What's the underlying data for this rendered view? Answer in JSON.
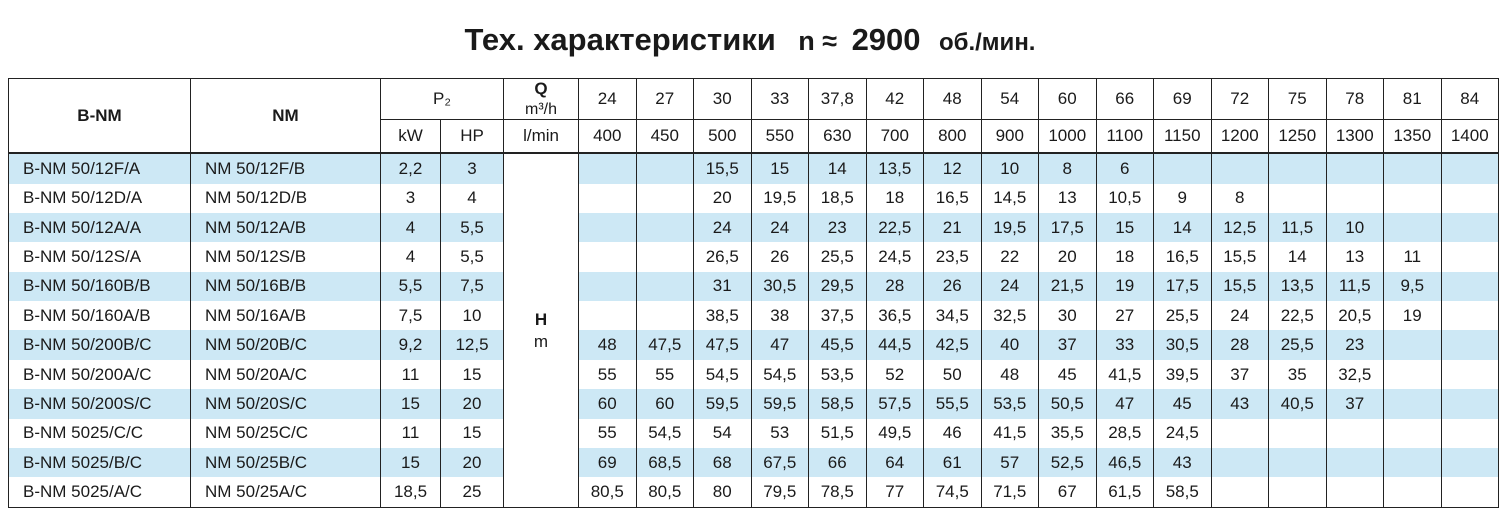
{
  "title": {
    "prefix": "Тех. характеристики",
    "n_part": "n ≈",
    "speed": "2900",
    "unit": "об./мин."
  },
  "header": {
    "col1": "B-NM",
    "col2": "NM",
    "power": "P₂",
    "kw": "kW",
    "hp": "HP",
    "q_label": "Q",
    "q_unit_m3h": "m³/h",
    "q_unit_lmin": "l/min",
    "h_label": "H",
    "h_unit": "m",
    "flow_m3h": [
      "24",
      "27",
      "30",
      "33",
      "37,8",
      "42",
      "48",
      "54",
      "60",
      "66",
      "69",
      "72",
      "75",
      "78",
      "81",
      "84"
    ],
    "flow_lmin": [
      "400",
      "450",
      "500",
      "550",
      "630",
      "700",
      "800",
      "900",
      "1000",
      "1100",
      "1150",
      "1200",
      "1250",
      "1300",
      "1350",
      "1400"
    ]
  },
  "rows": [
    {
      "bnm": "B-NM 50/12F/A",
      "nm": "NM 50/12F/B",
      "kw": "2,2",
      "hp": "3",
      "h": [
        "",
        "",
        "15,5",
        "15",
        "14",
        "13,5",
        "12",
        "10",
        "8",
        "6",
        "",
        "",
        "",
        "",
        "",
        ""
      ]
    },
    {
      "bnm": "B-NM 50/12D/A",
      "nm": "NM 50/12D/B",
      "kw": "3",
      "hp": "4",
      "h": [
        "",
        "",
        "20",
        "19,5",
        "18,5",
        "18",
        "16,5",
        "14,5",
        "13",
        "10,5",
        "9",
        "8",
        "",
        "",
        "",
        ""
      ]
    },
    {
      "bnm": "B-NM 50/12A/A",
      "nm": "NM 50/12A/B",
      "kw": "4",
      "hp": "5,5",
      "h": [
        "",
        "",
        "24",
        "24",
        "23",
        "22,5",
        "21",
        "19,5",
        "17,5",
        "15",
        "14",
        "12,5",
        "11,5",
        "10",
        "",
        ""
      ]
    },
    {
      "bnm": "B-NM 50/12S/A",
      "nm": "NM 50/12S/B",
      "kw": "4",
      "hp": "5,5",
      "h": [
        "",
        "",
        "26,5",
        "26",
        "25,5",
        "24,5",
        "23,5",
        "22",
        "20",
        "18",
        "16,5",
        "15,5",
        "14",
        "13",
        "11",
        ""
      ]
    },
    {
      "bnm": "B-NM 50/160B/B",
      "nm": "NM 50/16B/B",
      "kw": "5,5",
      "hp": "7,5",
      "h": [
        "",
        "",
        "31",
        "30,5",
        "29,5",
        "28",
        "26",
        "24",
        "21,5",
        "19",
        "17,5",
        "15,5",
        "13,5",
        "11,5",
        "9,5",
        ""
      ]
    },
    {
      "bnm": "B-NM 50/160A/B",
      "nm": "NM 50/16A/B",
      "kw": "7,5",
      "hp": "10",
      "h": [
        "",
        "",
        "38,5",
        "38",
        "37,5",
        "36,5",
        "34,5",
        "32,5",
        "30",
        "27",
        "25,5",
        "24",
        "22,5",
        "20,5",
        "19",
        ""
      ]
    },
    {
      "bnm": "B-NM 50/200B/C",
      "nm": "NM 50/20B/C",
      "kw": "9,2",
      "hp": "12,5",
      "h": [
        "48",
        "47,5",
        "47,5",
        "47",
        "45,5",
        "44,5",
        "42,5",
        "40",
        "37",
        "33",
        "30,5",
        "28",
        "25,5",
        "23",
        "",
        ""
      ]
    },
    {
      "bnm": "B-NM 50/200A/C",
      "nm": "NM 50/20A/C",
      "kw": "11",
      "hp": "15",
      "h": [
        "55",
        "55",
        "54,5",
        "54,5",
        "53,5",
        "52",
        "50",
        "48",
        "45",
        "41,5",
        "39,5",
        "37",
        "35",
        "32,5",
        "",
        ""
      ]
    },
    {
      "bnm": "B-NM 50/200S/C",
      "nm": "NM 50/20S/C",
      "kw": "15",
      "hp": "20",
      "h": [
        "60",
        "60",
        "59,5",
        "59,5",
        "58,5",
        "57,5",
        "55,5",
        "53,5",
        "50,5",
        "47",
        "45",
        "43",
        "40,5",
        "37",
        "",
        ""
      ]
    },
    {
      "bnm": "B-NM 5025/C/C",
      "nm": "NM 50/25C/C",
      "kw": "11",
      "hp": "15",
      "h": [
        "55",
        "54,5",
        "54",
        "53",
        "51,5",
        "49,5",
        "46",
        "41,5",
        "35,5",
        "28,5",
        "24,5",
        "",
        "",
        "",
        "",
        ""
      ]
    },
    {
      "bnm": "B-NM 5025/B/C",
      "nm": "NM 50/25B/C",
      "kw": "15",
      "hp": "20",
      "h": [
        "69",
        "68,5",
        "68",
        "67,5",
        "66",
        "64",
        "61",
        "57",
        "52,5",
        "46,5",
        "43",
        "",
        "",
        "",
        "",
        ""
      ]
    },
    {
      "bnm": "B-NM 5025/A/C",
      "nm": "NM 50/25A/C",
      "kw": "18,5",
      "hp": "25",
      "h": [
        "80,5",
        "80,5",
        "80",
        "79,5",
        "78,5",
        "77",
        "74,5",
        "71,5",
        "67",
        "61,5",
        "58,5",
        "",
        "",
        "",
        "",
        ""
      ]
    }
  ],
  "colors": {
    "stripe": "#cde8f5",
    "border": "#222222"
  }
}
